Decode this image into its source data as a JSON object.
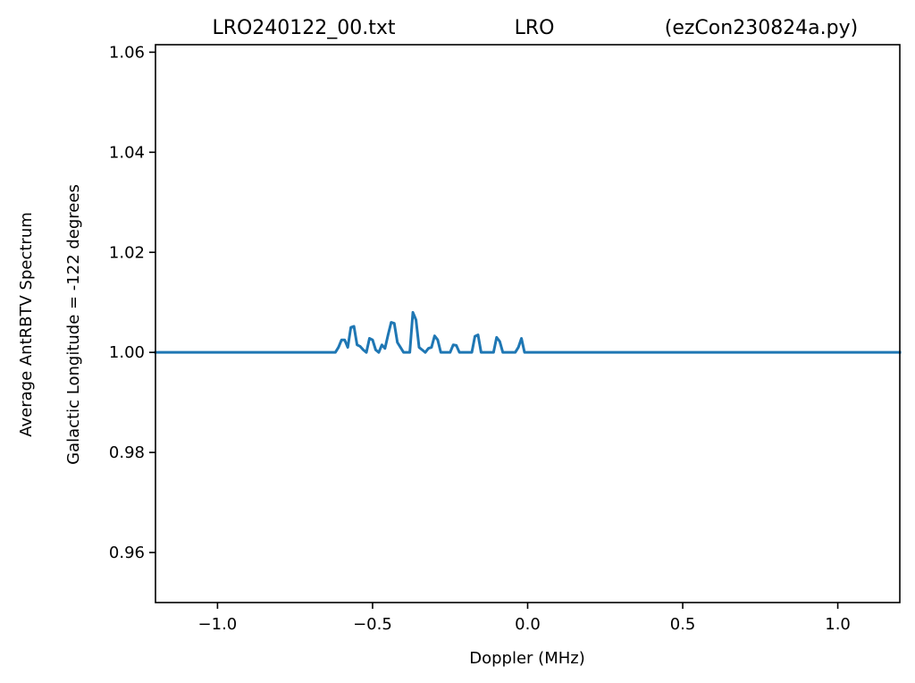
{
  "chart_data": {
    "type": "line",
    "title_parts": [
      "LRO240122_00.txt",
      "LRO",
      "(ezCon230824a.py)"
    ],
    "xlabel": "Doppler (MHz)",
    "ylabel_lines": [
      "Average AntRBTV Spectrum",
      "Galactic Longitude = -122 degrees"
    ],
    "xlim": [
      -1.2,
      1.2
    ],
    "ylim": [
      0.95,
      1.0615
    ],
    "xticks": [
      -1.0,
      -0.5,
      0.0,
      0.5,
      1.0
    ],
    "xtick_labels": [
      "−1.0",
      "−0.5",
      "0.0",
      "0.5",
      "1.0"
    ],
    "yticks": [
      0.96,
      0.98,
      1.0,
      1.02,
      1.04,
      1.06
    ],
    "ytick_labels": [
      "0.96",
      "0.98",
      "1.00",
      "1.02",
      "1.04",
      "1.06"
    ],
    "grid": false,
    "color": "#1f77b4",
    "series": [
      {
        "x": [
          -1.2,
          -0.62,
          -0.61,
          -0.6,
          -0.59,
          -0.58,
          -0.57,
          -0.56,
          -0.55,
          -0.54,
          -0.53,
          -0.52,
          -0.51,
          -0.5,
          -0.49,
          -0.48,
          -0.47,
          -0.46,
          -0.45,
          -0.44,
          -0.43,
          -0.42,
          -0.41,
          -0.4,
          -0.39,
          -0.38,
          -0.37,
          -0.36,
          -0.35,
          -0.34,
          -0.33,
          -0.32,
          -0.31,
          -0.3,
          -0.29,
          -0.28,
          -0.27,
          -0.26,
          -0.25,
          -0.24,
          -0.23,
          -0.22,
          -0.21,
          -0.2,
          -0.19,
          -0.18,
          -0.17,
          -0.16,
          -0.15,
          -0.14,
          -0.13,
          -0.12,
          -0.11,
          -0.1,
          -0.09,
          -0.08,
          -0.07,
          -0.06,
          -0.05,
          -0.04,
          -0.03,
          -0.02,
          -0.01,
          1.2
        ],
        "values": [
          1.0,
          1.0,
          1.001,
          1.0025,
          1.0025,
          1.001,
          1.005,
          1.0052,
          1.0015,
          1.0012,
          1.0005,
          1.0,
          1.0028,
          1.0025,
          1.0005,
          1.0,
          1.0015,
          1.0008,
          1.0035,
          1.006,
          1.0058,
          1.002,
          1.001,
          1.0,
          1.0,
          1.0,
          1.008,
          1.0065,
          1.001,
          1.0005,
          1.0,
          1.0008,
          1.001,
          1.0033,
          1.0025,
          1.0,
          1.0,
          1.0,
          1.0,
          1.0015,
          1.0014,
          1.0,
          1.0,
          1.0,
          1.0,
          1.0,
          1.0032,
          1.0035,
          1.0,
          1.0,
          1.0,
          1.0,
          1.0,
          1.003,
          1.0022,
          1.0,
          1.0,
          1.0,
          1.0,
          1.0,
          1.001,
          1.0028,
          1.0,
          1.0
        ]
      }
    ]
  }
}
